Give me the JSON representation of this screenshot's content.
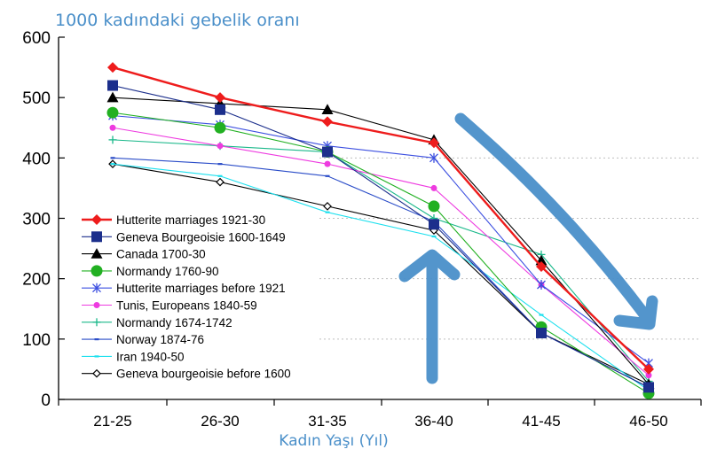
{
  "chart_data": {
    "type": "line",
    "title": "1000 kadındaki gebelik oranı",
    "xlabel": "Kadın Yaşı (Yıl)",
    "ylabel": "",
    "categories": [
      "21-25",
      "26-30",
      "31-35",
      "36-40",
      "41-45",
      "46-50"
    ],
    "ylim": [
      0,
      600
    ],
    "yticks": [
      0,
      100,
      200,
      300,
      400,
      500,
      600
    ],
    "grid": "dotted horizontal lines at 100, 200, 300, 400 in right portion",
    "legend_position": "lower-left",
    "series": [
      {
        "name": "Hutterite marriages 1921-30",
        "color": "#ee1c1c",
        "marker": "diamond",
        "values": [
          550,
          500,
          460,
          425,
          220,
          50
        ]
      },
      {
        "name": "Geneva Bourgeoisie 1600-1649",
        "color": "#1c2f8c",
        "marker": "square",
        "values": [
          520,
          480,
          410,
          290,
          110,
          20
        ]
      },
      {
        "name": "Canada 1700-30",
        "color": "#000000",
        "marker": "triangle",
        "values": [
          500,
          490,
          480,
          430,
          230,
          25
        ]
      },
      {
        "name": "Normandy 1760-90",
        "color": "#22b022",
        "marker": "circle",
        "values": [
          475,
          450,
          410,
          320,
          120,
          10
        ]
      },
      {
        "name": "Hutterite marriages before 1921",
        "color": "#3c4fe0",
        "marker": "star",
        "values": [
          470,
          455,
          420,
          400,
          190,
          60
        ]
      },
      {
        "name": "Tunis, Europeans 1840-59",
        "color": "#ee3be0",
        "marker": "smallcircle",
        "values": [
          450,
          420,
          390,
          350,
          190,
          40
        ]
      },
      {
        "name": "Normandy 1674-1742",
        "color": "#1ab88a",
        "marker": "plus",
        "values": [
          430,
          420,
          410,
          300,
          240,
          30
        ]
      },
      {
        "name": "Norway 1874-76",
        "color": "#2a4cc8",
        "marker": "dash",
        "values": [
          400,
          390,
          370,
          295,
          110,
          20
        ]
      },
      {
        "name": "Iran 1940-50",
        "color": "#1ee0ee",
        "marker": "dash",
        "values": [
          390,
          370,
          310,
          270,
          140,
          15
        ]
      },
      {
        "name": "Geneva bourgeoisie before 1600",
        "color": "#000000",
        "marker": "opendiamond",
        "values": [
          390,
          360,
          320,
          280,
          110,
          25
        ]
      }
    ],
    "annotations": [
      {
        "name": "upward-arrow",
        "color": "#4a8fc9"
      },
      {
        "name": "downward-curved-arrow",
        "color": "#4a8fc9"
      }
    ]
  }
}
